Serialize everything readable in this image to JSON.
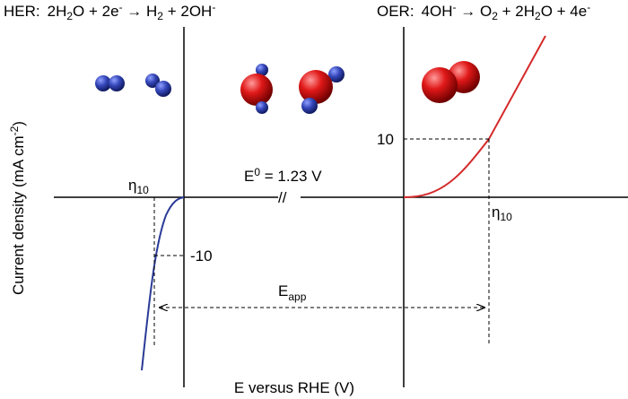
{
  "her": {
    "label": "HER:",
    "equation": [
      "2H",
      "2",
      "O + 2e",
      "-",
      " → H",
      "2",
      " + 2OH",
      "-"
    ]
  },
  "oer": {
    "label": "OER:",
    "equation": [
      "4OH",
      "-",
      " → O",
      "2",
      " + 2H",
      "2",
      "O + 4e",
      "-"
    ]
  },
  "y_axis_label": [
    "Current density (mA cm",
    "-2",
    ")"
  ],
  "x_axis_label": "E versus RHE (V)",
  "equilibrium": [
    "E",
    "0",
    " = 1.23 V"
  ],
  "axis_break": "//",
  "her_overpotential": [
    "η",
    "10"
  ],
  "her_current": "-10",
  "oer_overpotential": [
    "η",
    "10"
  ],
  "oer_current": "10",
  "applied_potential": [
    "E",
    "app"
  ]
}
